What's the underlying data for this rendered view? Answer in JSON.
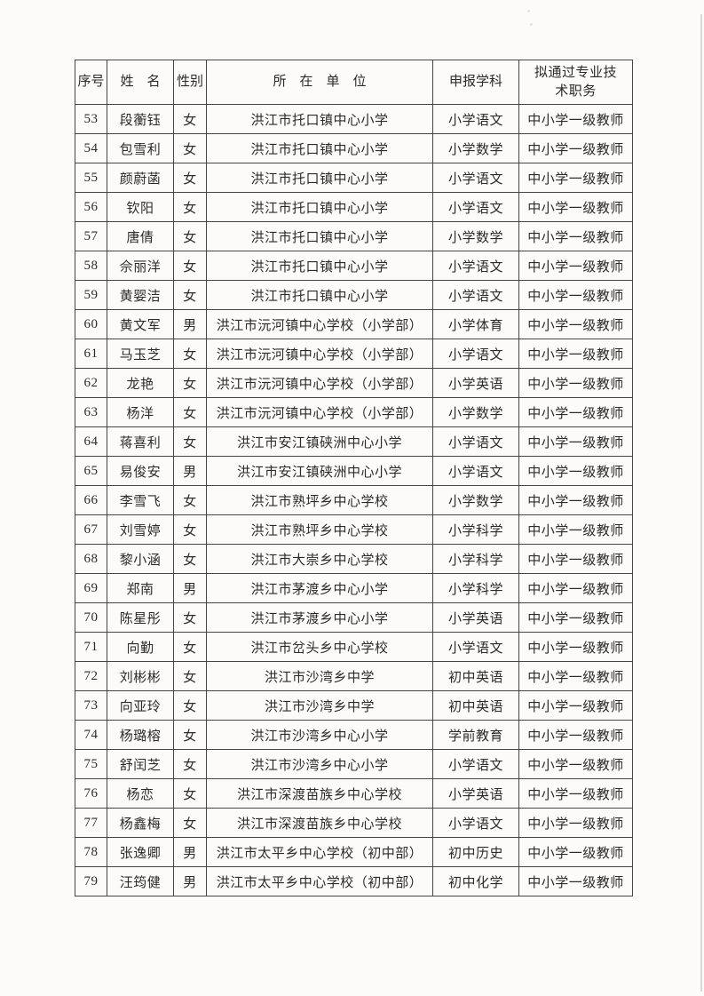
{
  "table": {
    "headers": {
      "seq": "序号",
      "name": "姓　名",
      "gender": "性别",
      "unit": "所　在　单　位",
      "subject": "申报学科",
      "title": "拟通过专业技术职务"
    },
    "rows": [
      {
        "seq": "53",
        "name": "段蘅钰",
        "gender": "女",
        "unit": "洪江市托口镇中心小学",
        "subject": "小学语文",
        "title": "中小学一级教师"
      },
      {
        "seq": "54",
        "name": "包雪利",
        "gender": "女",
        "unit": "洪江市托口镇中心小学",
        "subject": "小学数学",
        "title": "中小学一级教师"
      },
      {
        "seq": "55",
        "name": "颜蔚菡",
        "gender": "女",
        "unit": "洪江市托口镇中心小学",
        "subject": "小学语文",
        "title": "中小学一级教师"
      },
      {
        "seq": "56",
        "name": "钦阳",
        "gender": "女",
        "unit": "洪江市托口镇中心小学",
        "subject": "小学语文",
        "title": "中小学一级教师"
      },
      {
        "seq": "57",
        "name": "唐倩",
        "gender": "女",
        "unit": "洪江市托口镇中心小学",
        "subject": "小学数学",
        "title": "中小学一级教师"
      },
      {
        "seq": "58",
        "name": "佘丽洋",
        "gender": "女",
        "unit": "洪江市托口镇中心小学",
        "subject": "小学语文",
        "title": "中小学一级教师"
      },
      {
        "seq": "59",
        "name": "黄婴洁",
        "gender": "女",
        "unit": "洪江市托口镇中心小学",
        "subject": "小学语文",
        "title": "中小学一级教师"
      },
      {
        "seq": "60",
        "name": "黄文军",
        "gender": "男",
        "unit": "洪江市沅河镇中心学校（小学部）",
        "subject": "小学体育",
        "title": "中小学一级教师"
      },
      {
        "seq": "61",
        "name": "马玉芝",
        "gender": "女",
        "unit": "洪江市沅河镇中心学校（小学部）",
        "subject": "小学语文",
        "title": "中小学一级教师"
      },
      {
        "seq": "62",
        "name": "龙艳",
        "gender": "女",
        "unit": "洪江市沅河镇中心学校（小学部）",
        "subject": "小学英语",
        "title": "中小学一级教师"
      },
      {
        "seq": "63",
        "name": "杨洋",
        "gender": "女",
        "unit": "洪江市沅河镇中心学校（小学部）",
        "subject": "小学数学",
        "title": "中小学一级教师"
      },
      {
        "seq": "64",
        "name": "蒋喜利",
        "gender": "女",
        "unit": "洪江市安江镇硖洲中心小学",
        "subject": "小学语文",
        "title": "中小学一级教师"
      },
      {
        "seq": "65",
        "name": "易俊安",
        "gender": "男",
        "unit": "洪江市安江镇硖洲中心小学",
        "subject": "小学语文",
        "title": "中小学一级教师"
      },
      {
        "seq": "66",
        "name": "李雪飞",
        "gender": "女",
        "unit": "洪江市熟坪乡中心学校",
        "subject": "小学数学",
        "title": "中小学一级教师"
      },
      {
        "seq": "67",
        "name": "刘雪婷",
        "gender": "女",
        "unit": "洪江市熟坪乡中心学校",
        "subject": "小学科学",
        "title": "中小学一级教师"
      },
      {
        "seq": "68",
        "name": "黎小涵",
        "gender": "女",
        "unit": "洪江市大崇乡中心学校",
        "subject": "小学科学",
        "title": "中小学一级教师"
      },
      {
        "seq": "69",
        "name": "郑南",
        "gender": "男",
        "unit": "洪江市茅渡乡中心小学",
        "subject": "小学科学",
        "title": "中小学一级教师"
      },
      {
        "seq": "70",
        "name": "陈星彤",
        "gender": "女",
        "unit": "洪江市茅渡乡中心小学",
        "subject": "小学英语",
        "title": "中小学一级教师"
      },
      {
        "seq": "71",
        "name": "向勤",
        "gender": "女",
        "unit": "洪江市岔头乡中心学校",
        "subject": "小学语文",
        "title": "中小学一级教师"
      },
      {
        "seq": "72",
        "name": "刘彬彬",
        "gender": "女",
        "unit": "洪江市沙湾乡中学",
        "subject": "初中英语",
        "title": "中小学一级教师"
      },
      {
        "seq": "73",
        "name": "向亚玲",
        "gender": "女",
        "unit": "洪江市沙湾乡中学",
        "subject": "初中英语",
        "title": "中小学一级教师"
      },
      {
        "seq": "74",
        "name": "杨璐榕",
        "gender": "女",
        "unit": "洪江市沙湾乡中心小学",
        "subject": "学前教育",
        "title": "中小学一级教师"
      },
      {
        "seq": "75",
        "name": "舒闰芝",
        "gender": "女",
        "unit": "洪江市沙湾乡中心小学",
        "subject": "小学语文",
        "title": "中小学一级教师"
      },
      {
        "seq": "76",
        "name": "杨恋",
        "gender": "女",
        "unit": "洪江市深渡苗族乡中心学校",
        "subject": "小学英语",
        "title": "中小学一级教师"
      },
      {
        "seq": "77",
        "name": "杨鑫梅",
        "gender": "女",
        "unit": "洪江市深渡苗族乡中心学校",
        "subject": "小学语文",
        "title": "中小学一级教师"
      },
      {
        "seq": "78",
        "name": "张逸卿",
        "gender": "男",
        "unit": "洪江市太平乡中心学校（初中部）",
        "subject": "初中历史",
        "title": "中小学一级教师"
      },
      {
        "seq": "79",
        "name": "汪筠健",
        "gender": "男",
        "unit": "洪江市太平乡中心学校（初中部）",
        "subject": "初中化学",
        "title": "中小学一级教师"
      }
    ]
  }
}
